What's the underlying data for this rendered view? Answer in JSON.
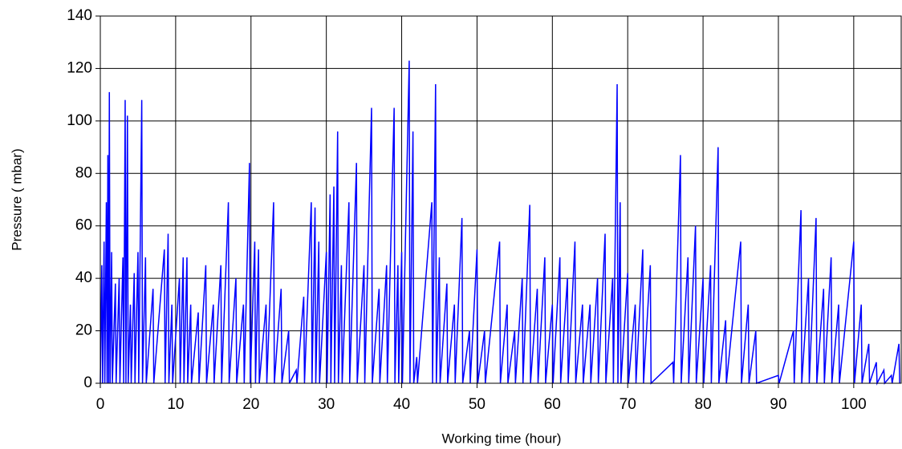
{
  "chart_data": {
    "type": "line",
    "x_label": "Working time (hour)",
    "y_label": "Pressure ( mbar)",
    "color": "#0000ff",
    "grid": true,
    "xlim": [
      0,
      106.3
    ],
    "ylim": [
      0,
      140
    ],
    "xticks": [
      0,
      10,
      20,
      30,
      40,
      50,
      60,
      70,
      80,
      90,
      100
    ],
    "yticks": [
      0,
      20,
      40,
      60,
      80,
      100,
      120,
      140
    ],
    "x": [
      0,
      0.2,
      0.3,
      0.5,
      0.6,
      0.8,
      0.9,
      1,
      1.1,
      1.2,
      1.3,
      1.5,
      1.6,
      2,
      2.1,
      2.5,
      2.6,
      3,
      3.1,
      3.3,
      3.4,
      3.6,
      3.7,
      4,
      4.1,
      4.5,
      4.6,
      5,
      5.1,
      5.5,
      5.6,
      6,
      6.1,
      7,
      7.1,
      8.5,
      8.6,
      9,
      9.1,
      9.5,
      9.6,
      10.5,
      10.6,
      11,
      11.1,
      11.5,
      11.6,
      12,
      12.1,
      13,
      13.1,
      14,
      14.1,
      15,
      15.1,
      16,
      16.1,
      17,
      17.1,
      18,
      18.1,
      19,
      19.1,
      19.8,
      19.9,
      20.5,
      20.6,
      21,
      21.1,
      22,
      22.1,
      23,
      23.1,
      24,
      24.1,
      25,
      25.1,
      26,
      26.1,
      27,
      27.1,
      28,
      28.1,
      28.5,
      28.6,
      29,
      29.1,
      30,
      30.1,
      30.5,
      30.6,
      31,
      31.1,
      31.5,
      31.6,
      32,
      32.1,
      33,
      33.1,
      34,
      34.1,
      35,
      35.1,
      36,
      36.1,
      37,
      37.1,
      38,
      38.1,
      39,
      39.1,
      39.5,
      39.6,
      40,
      40.1,
      41,
      41.1,
      41.5,
      41.6,
      42,
      42.1,
      44,
      44.1,
      44.5,
      44.6,
      45,
      45.1,
      46,
      46.1,
      47,
      47.1,
      48,
      48.1,
      49,
      49.1,
      50,
      50.1,
      51,
      51.1,
      53,
      53.1,
      54,
      54.1,
      55,
      55.1,
      56,
      56.1,
      57,
      57.1,
      58,
      58.1,
      59,
      59.1,
      60,
      60.1,
      61,
      61.1,
      62,
      62.1,
      63,
      63.1,
      64,
      64.1,
      65,
      65.1,
      66,
      66.1,
      67,
      67.1,
      68,
      68.1,
      68.6,
      68.7,
      69,
      69.1,
      70,
      70.1,
      71,
      71.1,
      72,
      72.1,
      73,
      73.1,
      76,
      76.1,
      77,
      77.1,
      78,
      78.1,
      79,
      79.1,
      80,
      80.1,
      81,
      81.1,
      82,
      82.1,
      83,
      83.1,
      85,
      85.1,
      86,
      86.1,
      87,
      87.1,
      90,
      90.1,
      92,
      92.1,
      93,
      93.1,
      94,
      94.1,
      95,
      95.1,
      96,
      96.1,
      97,
      97.1,
      98,
      98.1,
      100,
      100.1,
      101,
      101.1,
      102,
      102.1,
      103,
      103.1,
      104,
      104.1,
      105,
      105.1,
      106,
      106.1
    ],
    "values": [
      0,
      45,
      0,
      54,
      0,
      69,
      0,
      87,
      0,
      111,
      0,
      50,
      0,
      38,
      0,
      40,
      0,
      48,
      0,
      108,
      0,
      102,
      0,
      30,
      0,
      42,
      0,
      50,
      0,
      108,
      0,
      48,
      0,
      36,
      0,
      51,
      0,
      57,
      0,
      30,
      0,
      40,
      0,
      48,
      0,
      48,
      0,
      30,
      0,
      27,
      0,
      45,
      0,
      30,
      0,
      45,
      0,
      69,
      0,
      40,
      0,
      30,
      0,
      84,
      0,
      54,
      0,
      51,
      0,
      30,
      0,
      69,
      0,
      36,
      0,
      20,
      0,
      5,
      0,
      33,
      0,
      69,
      0,
      67,
      0,
      54,
      0,
      50,
      0,
      72,
      0,
      75,
      0,
      96,
      0,
      45,
      0,
      69,
      0,
      84,
      0,
      45,
      0,
      105,
      0,
      36,
      0,
      45,
      0,
      105,
      0,
      45,
      0,
      50,
      0,
      123,
      0,
      96,
      0,
      10,
      0,
      69,
      0,
      114,
      0,
      48,
      0,
      38,
      0,
      30,
      0,
      63,
      0,
      20,
      0,
      51,
      0,
      20,
      0,
      54,
      0,
      30,
      0,
      20,
      0,
      40,
      0,
      68,
      0,
      36,
      0,
      48,
      0,
      30,
      0,
      48,
      0,
      40,
      0,
      54,
      0,
      30,
      0,
      30,
      0,
      40,
      0,
      57,
      0,
      40,
      0,
      114,
      0,
      69,
      0,
      42,
      0,
      30,
      0,
      51,
      0,
      45,
      0,
      8,
      0,
      87,
      0,
      48,
      0,
      60,
      0,
      40,
      0,
      45,
      0,
      90,
      0,
      24,
      0,
      54,
      0,
      30,
      0,
      20,
      0,
      3,
      0,
      20,
      0,
      66,
      0,
      40,
      0,
      63,
      0,
      36,
      0,
      48,
      0,
      30,
      0,
      54,
      0,
      30,
      0,
      15,
      0,
      8,
      0,
      5,
      0,
      3,
      0,
      15,
      0
    ]
  }
}
